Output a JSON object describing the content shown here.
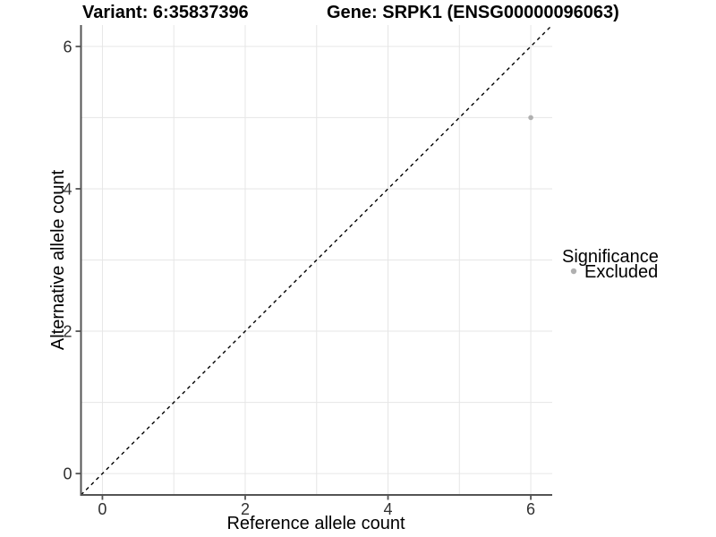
{
  "chart_data": {
    "type": "scatter",
    "title_left": "Variant: 6:35837396",
    "title_right": "Gene: SRPK1 (ENSG00000096063)",
    "xlabel": "Reference allele count",
    "ylabel": "Alternative allele count",
    "xlim": [
      -0.3,
      6.3
    ],
    "ylim": [
      -0.3,
      6.3
    ],
    "x_ticks": [
      0,
      2,
      4,
      6
    ],
    "y_ticks": [
      0,
      2,
      4,
      6
    ],
    "grid_positions": [
      0,
      1,
      2,
      3,
      4,
      5,
      6
    ],
    "grid": true,
    "identity_line": {
      "style": "dashed",
      "color": "#000000",
      "from": [
        -0.3,
        -0.3
      ],
      "to": [
        6.3,
        6.3
      ]
    },
    "series": [
      {
        "name": "Excluded",
        "color": "#b0b0b0",
        "point_radius": 2.8,
        "points": [
          {
            "x": 6,
            "y": 5
          }
        ]
      }
    ],
    "legend": {
      "title": "Significance",
      "position": "right",
      "items": [
        {
          "label": "Excluded",
          "color": "#b0b0b0"
        }
      ]
    }
  },
  "colors": {
    "background": "#ffffff",
    "grid": "#e6e6e6",
    "axis": "#545454",
    "tick_text": "#303030",
    "title_text": "#000000",
    "point": "#b0b0b0",
    "identity": "#000000"
  }
}
